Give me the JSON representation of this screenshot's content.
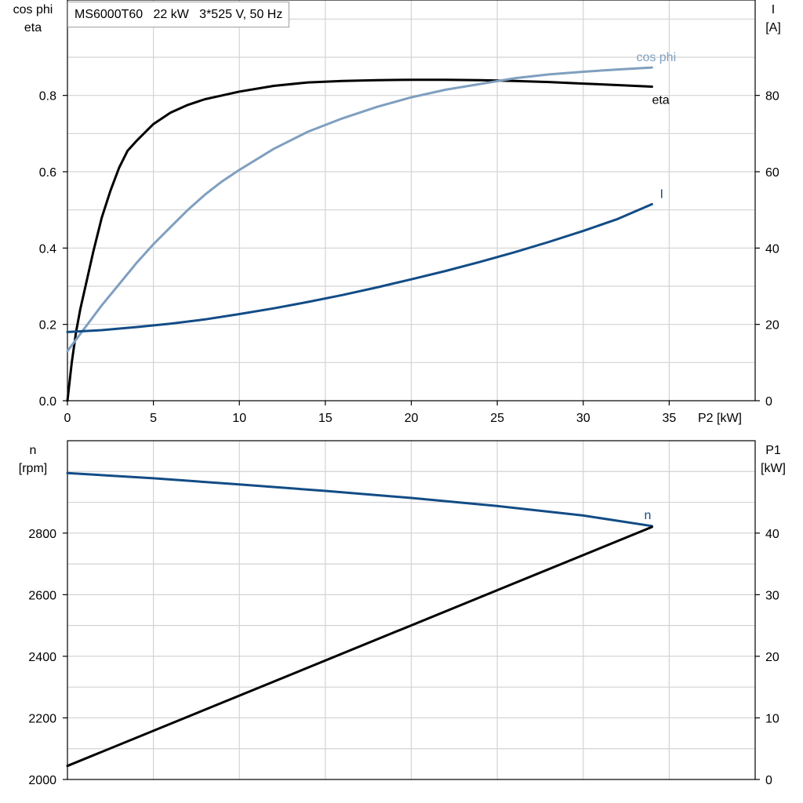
{
  "title": "MS6000T60   22 kW   3*525 V, 50 Hz",
  "colors": {
    "eta": "#000000",
    "cosphi": "#7f9fbf",
    "current": "#124c86",
    "speed": "#124c86",
    "p1": "#000000",
    "grid": "#d3d3d3"
  },
  "chart_data": [
    {
      "type": "line",
      "xlabel": "P2 [kW]",
      "xlim": [
        0,
        40
      ],
      "xticks": [
        0,
        5,
        10,
        15,
        20,
        25,
        30,
        35
      ],
      "ylabel_left": [
        "cos phi",
        "eta"
      ],
      "ylim_left": [
        0,
        1.05
      ],
      "yticks_left": [
        "0.0",
        "0.2",
        "0.4",
        "0.6",
        "0.8"
      ],
      "ylabel_right": [
        "I",
        "[A]"
      ],
      "ylim_right": [
        0,
        105
      ],
      "yticks_right": [
        "0",
        "20",
        "40",
        "60",
        "80"
      ],
      "grid": true,
      "series": [
        {
          "name": "eta",
          "axis": "left",
          "x": [
            0,
            0.25,
            0.5,
            0.75,
            1,
            1.5,
            2,
            2.5,
            3,
            3.5,
            4,
            5,
            6,
            7,
            8,
            9,
            10,
            12,
            14,
            16,
            18,
            20,
            22,
            24,
            26,
            28,
            30,
            32,
            34
          ],
          "y": [
            0,
            0.1,
            0.18,
            0.24,
            0.29,
            0.39,
            0.48,
            0.55,
            0.61,
            0.655,
            0.68,
            0.725,
            0.755,
            0.775,
            0.79,
            0.8,
            0.81,
            0.825,
            0.834,
            0.838,
            0.84,
            0.841,
            0.841,
            0.84,
            0.838,
            0.835,
            0.831,
            0.827,
            0.823
          ]
        },
        {
          "name": "cos phi",
          "axis": "left",
          "x": [
            0,
            1,
            2,
            3,
            4,
            5,
            6,
            7,
            8,
            9,
            10,
            12,
            14,
            16,
            18,
            20,
            22,
            24,
            26,
            28,
            30,
            32,
            34
          ],
          "y": [
            0.13,
            0.19,
            0.25,
            0.305,
            0.36,
            0.41,
            0.455,
            0.5,
            0.54,
            0.575,
            0.605,
            0.66,
            0.705,
            0.74,
            0.77,
            0.795,
            0.815,
            0.83,
            0.845,
            0.855,
            0.862,
            0.868,
            0.873
          ]
        },
        {
          "name": "I",
          "axis": "right",
          "x": [
            0,
            2,
            4,
            6,
            8,
            10,
            12,
            14,
            16,
            18,
            20,
            22,
            24,
            26,
            28,
            30,
            32,
            34
          ],
          "y": [
            18,
            18.5,
            19.3,
            20.2,
            21.3,
            22.7,
            24.2,
            25.9,
            27.7,
            29.7,
            31.8,
            34.0,
            36.4,
            38.9,
            41.6,
            44.5,
            47.6,
            51.5
          ]
        }
      ]
    },
    {
      "type": "line",
      "xlim": [
        0,
        40
      ],
      "ylabel_left": [
        "n",
        "[rpm]"
      ],
      "ylim_left": [
        2000,
        3100
      ],
      "yticks_left": [
        "2000",
        "2200",
        "2400",
        "2600",
        "2800"
      ],
      "ylabel_right": [
        "P1",
        "[kW]"
      ],
      "ylim_right": [
        0,
        55
      ],
      "yticks_right": [
        "0",
        "10",
        "20",
        "30",
        "40"
      ],
      "grid": true,
      "series": [
        {
          "name": "n",
          "axis": "left",
          "x": [
            0,
            5,
            10,
            15,
            20,
            25,
            30,
            34
          ],
          "y": [
            2995,
            2978,
            2958,
            2937,
            2914,
            2888,
            2857,
            2823
          ]
        },
        {
          "name": "P1",
          "axis": "right",
          "x": [
            0,
            34
          ],
          "y": [
            2.2,
            41.0
          ]
        }
      ]
    }
  ]
}
